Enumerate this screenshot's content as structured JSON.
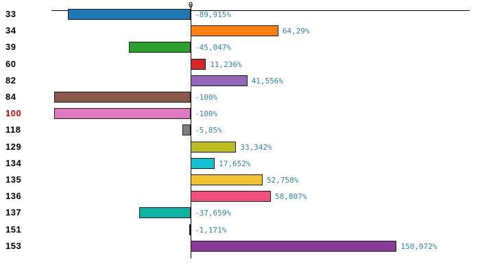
{
  "chart_data": {
    "type": "bar",
    "orientation": "horizontal",
    "title": "",
    "zero_label": "0",
    "value_suffix": "%",
    "xlim": [
      -102,
      205
    ],
    "grid": false,
    "legend": false,
    "categories": [
      "33",
      "34",
      "39",
      "60",
      "82",
      "84",
      "100",
      "118",
      "129",
      "134",
      "135",
      "136",
      "137",
      "151",
      "153"
    ],
    "rows": [
      {
        "category": "33",
        "value": -89.915,
        "value_label": "-89,915%",
        "bar_color": "#1f77b4",
        "category_color": "#000000"
      },
      {
        "category": "34",
        "value": 64.29,
        "value_label": "64,29%",
        "bar_color": "#ff7f0e",
        "category_color": "#000000"
      },
      {
        "category": "39",
        "value": -45.047,
        "value_label": "-45,047%",
        "bar_color": "#2ca02c",
        "category_color": "#000000"
      },
      {
        "category": "60",
        "value": 11.236,
        "value_label": "11,236%",
        "bar_color": "#d62728",
        "category_color": "#000000"
      },
      {
        "category": "82",
        "value": 41.556,
        "value_label": "41,556%",
        "bar_color": "#9467bd",
        "category_color": "#000000"
      },
      {
        "category": "84",
        "value": -100,
        "value_label": "-100%",
        "bar_color": "#8c564b",
        "category_color": "#000000"
      },
      {
        "category": "100",
        "value": -100,
        "value_label": "-100%",
        "bar_color": "#e377c2",
        "category_color": "#cc0000"
      },
      {
        "category": "118",
        "value": -5.85,
        "value_label": "-5,85%",
        "bar_color": "#7f7f7f",
        "category_color": "#000000"
      },
      {
        "category": "129",
        "value": 33.342,
        "value_label": "33,342%",
        "bar_color": "#bcbd22",
        "category_color": "#000000"
      },
      {
        "category": "134",
        "value": 17.652,
        "value_label": "17,652%",
        "bar_color": "#17becf",
        "category_color": "#000000"
      },
      {
        "category": "135",
        "value": 52.758,
        "value_label": "52,758%",
        "bar_color": "#f1c232",
        "category_color": "#000000"
      },
      {
        "category": "136",
        "value": 58.807,
        "value_label": "58,807%",
        "bar_color": "#f1517c",
        "category_color": "#000000"
      },
      {
        "category": "137",
        "value": -37.659,
        "value_label": "-37,659%",
        "bar_color": "#0fb3a5",
        "category_color": "#000000"
      },
      {
        "category": "151",
        "value": -1.171,
        "value_label": "-1,171%",
        "bar_color": "#f5efd5",
        "category_color": "#000000"
      },
      {
        "category": "153",
        "value": 150.972,
        "value_label": "150,972%",
        "bar_color": "#8b3a9b",
        "category_color": "#000000"
      }
    ]
  },
  "style_colors": {
    "value_label": "#2d84a8",
    "axis_line": "#000000",
    "bar_border": "#1a1a1a",
    "background": "#ffffff"
  }
}
